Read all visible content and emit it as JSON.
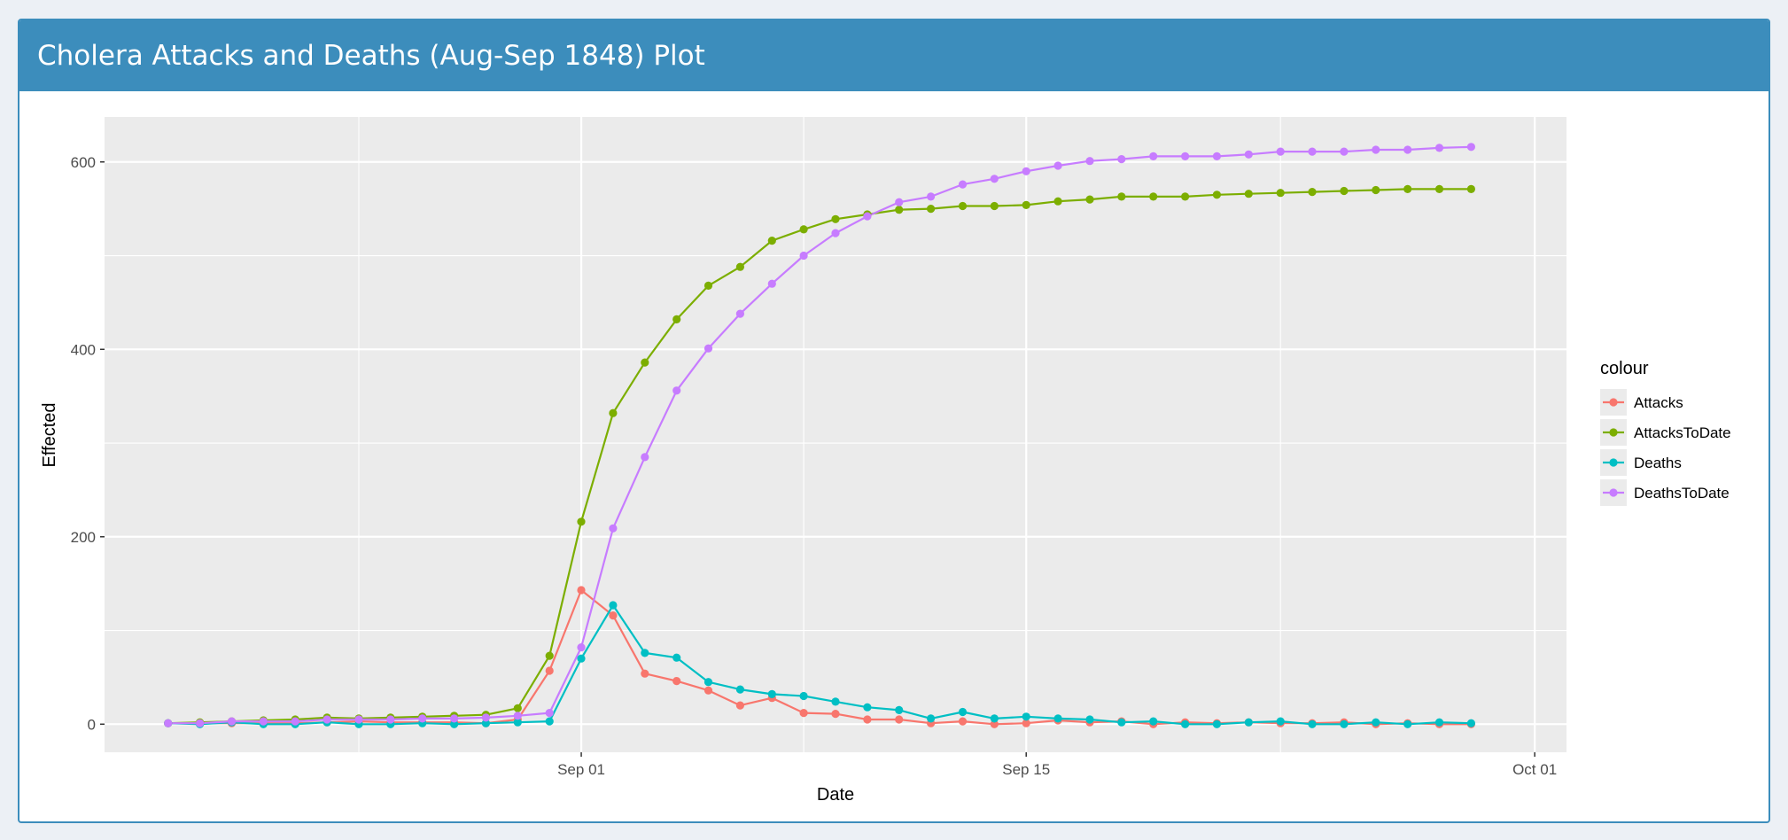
{
  "box": {
    "title": "Cholera Attacks and Deaths (Aug-Sep 1848) Plot"
  },
  "colors": {
    "header": "#3c8dbc",
    "panel": "#ebebeb",
    "grid": "#ffffff"
  },
  "chart_data": {
    "type": "line",
    "title": "",
    "xlabel": "Date",
    "ylabel": "Effected",
    "x_type": "date",
    "xlim": [
      "1848-08-17",
      "1848-10-02"
    ],
    "ylim": [
      -30,
      648
    ],
    "x_ticks": [
      {
        "date": "1848-09-01",
        "label": "Sep 01"
      },
      {
        "date": "1848-09-15",
        "label": "Sep 15"
      },
      {
        "date": "1848-10-01",
        "label": "Oct 01"
      }
    ],
    "y_ticks": [
      0,
      200,
      400,
      600
    ],
    "grid": true,
    "markers": true,
    "legend": {
      "title": "colour",
      "position": "right"
    },
    "x": [
      "1848-08-19",
      "1848-08-20",
      "1848-08-21",
      "1848-08-22",
      "1848-08-23",
      "1848-08-24",
      "1848-08-25",
      "1848-08-26",
      "1848-08-27",
      "1848-08-28",
      "1848-08-29",
      "1848-08-30",
      "1848-08-31",
      "1848-09-01",
      "1848-09-02",
      "1848-09-03",
      "1848-09-04",
      "1848-09-05",
      "1848-09-06",
      "1848-09-07",
      "1848-09-08",
      "1848-09-09",
      "1848-09-10",
      "1848-09-11",
      "1848-09-12",
      "1848-09-13",
      "1848-09-14",
      "1848-09-15",
      "1848-09-16",
      "1848-09-17",
      "1848-09-18",
      "1848-09-19",
      "1848-09-20",
      "1848-09-21",
      "1848-09-22",
      "1848-09-23",
      "1848-09-24",
      "1848-09-25",
      "1848-09-26",
      "1848-09-27",
      "1848-09-28",
      "1848-09-29"
    ],
    "series": [
      {
        "name": "Attacks",
        "color": "#f8766d",
        "values": [
          1,
          1,
          1,
          1,
          1,
          2,
          3,
          2,
          2,
          2,
          1,
          5,
          57,
          143,
          116,
          54,
          46,
          36,
          20,
          28,
          12,
          11,
          5,
          5,
          1,
          3,
          0,
          1,
          4,
          2,
          3,
          0,
          2,
          1,
          2,
          1,
          1,
          2,
          0,
          1,
          0,
          0
        ]
      },
      {
        "name": "AttacksToDate",
        "color": "#7cae00",
        "values": [
          1,
          2,
          3,
          4,
          5,
          7,
          6,
          7,
          8,
          9,
          10,
          17,
          73,
          216,
          332,
          386,
          432,
          468,
          488,
          516,
          528,
          539,
          544,
          549,
          550,
          553,
          553,
          554,
          558,
          560,
          563,
          563,
          563,
          565,
          566,
          567,
          568,
          569,
          570,
          571,
          571,
          571
        ]
      },
      {
        "name": "Deaths",
        "color": "#00bfc4",
        "values": [
          1,
          0,
          2,
          0,
          0,
          2,
          0,
          0,
          1,
          0,
          1,
          2,
          3,
          70,
          127,
          76,
          71,
          45,
          37,
          32,
          30,
          24,
          18,
          15,
          6,
          13,
          6,
          8,
          6,
          5,
          2,
          3,
          0,
          0,
          2,
          3,
          0,
          0,
          2,
          0,
          2,
          1
        ]
      },
      {
        "name": "DeathsToDate",
        "color": "#c77cff",
        "values": [
          1,
          1,
          3,
          3,
          3,
          5,
          5,
          5,
          6,
          6,
          7,
          9,
          12,
          82,
          209,
          285,
          356,
          401,
          438,
          470,
          500,
          524,
          542,
          557,
          563,
          576,
          582,
          590,
          596,
          601,
          603,
          606,
          606,
          606,
          608,
          611,
          611,
          611,
          613,
          613,
          615,
          616
        ]
      }
    ]
  }
}
